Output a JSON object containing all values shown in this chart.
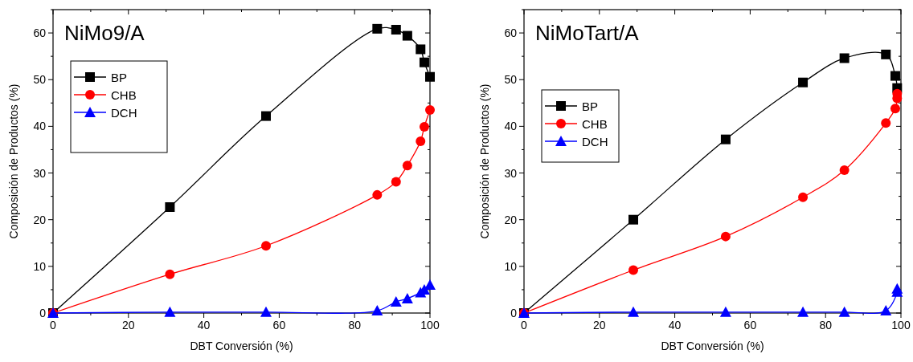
{
  "chart_data": [
    {
      "type": "line",
      "title": "NiMo9/A",
      "xlabel": "DBT Conversión (%)",
      "ylabel": "Composición de Productos (%)",
      "xlim": [
        0,
        100
      ],
      "ylim": [
        0,
        65
      ],
      "xticks": [
        0,
        {
          "value": 10,
          "label": null
        },
        20,
        {
          "value": 30,
          "label": null
        },
        40,
        {
          "value": 50,
          "label": null
        },
        60,
        {
          "value": 70,
          "label": null
        },
        80,
        {
          "value": 90,
          "label": null
        },
        100
      ],
      "yticks": [
        0,
        {
          "value": 5,
          "label": null
        },
        10,
        {
          "value": 15,
          "label": null
        },
        20,
        {
          "value": 25,
          "label": null
        },
        30,
        {
          "value": 35,
          "label": null
        },
        40,
        {
          "value": 45,
          "label": null
        },
        50,
        {
          "value": 55,
          "label": null
        },
        60,
        {
          "value": 65,
          "label": null
        }
      ],
      "legend": "top left",
      "grid": false,
      "line_style": "solid",
      "series": [
        {
          "name": "BP",
          "color": "#000000",
          "marker": "square",
          "x": [
            0,
            31,
            56.5,
            86,
            91,
            94,
            97.5,
            98.5,
            100
          ],
          "values": [
            0,
            22.7,
            42.2,
            60.9,
            60.7,
            59.4,
            56.5,
            53.7,
            50.6
          ]
        },
        {
          "name": "CHB",
          "color": "#ff0000",
          "marker": "circle",
          "x": [
            0,
            31,
            56.5,
            86,
            91,
            94,
            97.5,
            98.5,
            100
          ],
          "values": [
            0,
            8.3,
            14.4,
            25.3,
            28.1,
            31.6,
            36.8,
            39.9,
            43.5
          ]
        },
        {
          "name": "DCH",
          "color": "#0000ff",
          "marker": "triangle",
          "x": [
            0,
            31,
            56.5,
            86,
            91,
            94,
            97.5,
            98.5,
            100
          ],
          "values": [
            0,
            0.2,
            0.2,
            0.5,
            2.4,
            3.1,
            4.4,
            5.0,
            6.0
          ]
        }
      ]
    },
    {
      "type": "line",
      "title": "NiMoTart/A",
      "xlabel": "DBT Conversión (%)",
      "ylabel": "Composición de Productos (%)",
      "xlim": [
        0,
        100
      ],
      "ylim": [
        0,
        65
      ],
      "xticks": [
        0,
        {
          "value": 10,
          "label": null
        },
        20,
        {
          "value": 30,
          "label": null
        },
        40,
        {
          "value": 50,
          "label": null
        },
        60,
        {
          "value": 70,
          "label": null
        },
        80,
        {
          "value": 90,
          "label": null
        },
        100
      ],
      "yticks": [
        0,
        {
          "value": 5,
          "label": null
        },
        10,
        {
          "value": 15,
          "label": null
        },
        20,
        {
          "value": 25,
          "label": null
        },
        30,
        {
          "value": 35,
          "label": null
        },
        40,
        {
          "value": 45,
          "label": null
        },
        50,
        {
          "value": 55,
          "label": null
        },
        60,
        {
          "value": 65,
          "label": null
        }
      ],
      "legend": "top left",
      "grid": false,
      "line_style": "solid",
      "series": [
        {
          "name": "BP",
          "color": "#000000",
          "marker": "square",
          "x": [
            0,
            29,
            53.5,
            74,
            85,
            96,
            98.5,
            99
          ],
          "values": [
            0,
            20,
            37.2,
            49.4,
            54.6,
            55.4,
            50.8,
            48.2
          ]
        },
        {
          "name": "CHB",
          "color": "#ff0000",
          "marker": "circle",
          "x": [
            0,
            29,
            53.5,
            74,
            85,
            96,
            98.5,
            99,
            99
          ],
          "values": [
            0,
            9.2,
            16.4,
            24.8,
            30.6,
            40.7,
            43.8,
            46,
            47
          ]
        },
        {
          "name": "DCH",
          "color": "#0000ff",
          "marker": "triangle",
          "x": [
            0,
            29,
            53.5,
            74,
            85,
            96,
            99,
            99
          ],
          "values": [
            0,
            0.2,
            0.2,
            0.2,
            0.2,
            0.5,
            4.5,
            5.2
          ]
        }
      ]
    }
  ]
}
